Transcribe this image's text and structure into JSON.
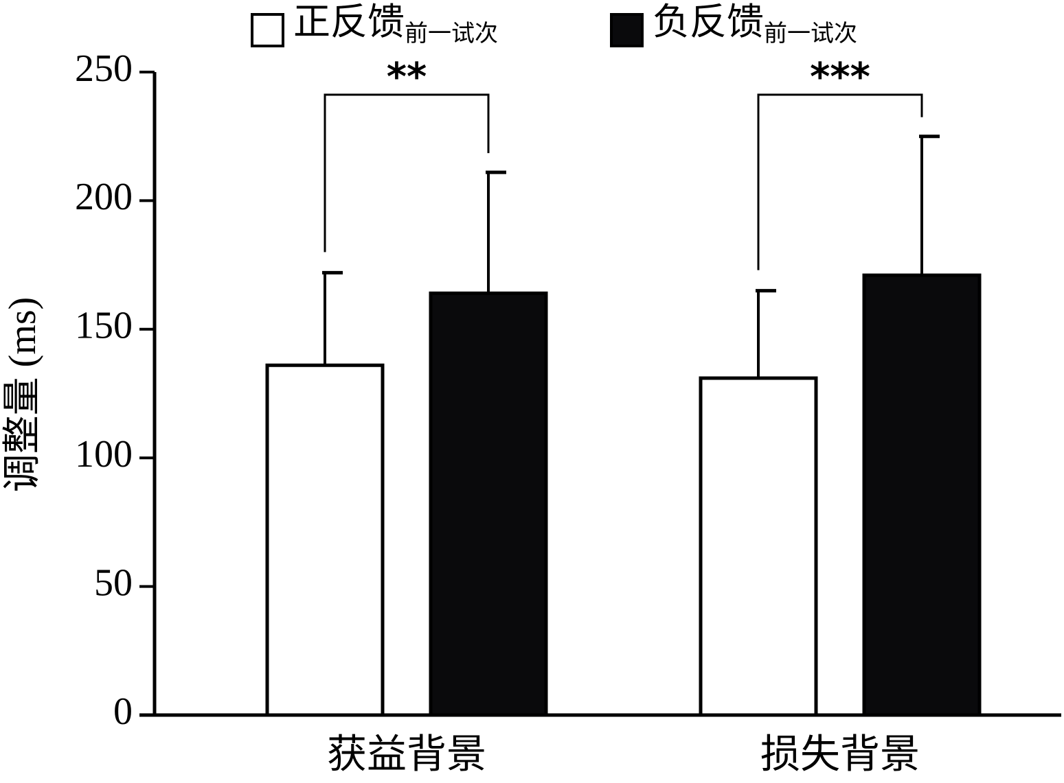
{
  "chart_data": {
    "type": "bar",
    "y_label": "调整量 (ms)",
    "categories": [
      "获益背景",
      "损失背景"
    ],
    "series": [
      {
        "name": "正反馈",
        "subscript": "前一试次",
        "color": "#ffffff",
        "values": [
          136,
          131
        ],
        "errors": [
          36,
          34
        ]
      },
      {
        "name": "负反馈",
        "subscript": "前一试次",
        "color": "#0a0a0c",
        "values": [
          164,
          171
        ],
        "errors": [
          47,
          54
        ]
      }
    ],
    "annotations": [
      {
        "text": "**",
        "category": 0
      },
      {
        "text": "***",
        "category": 1
      }
    ],
    "ylim": [
      0,
      250
    ],
    "yticks": [
      0,
      50,
      100,
      150,
      200,
      250
    ]
  }
}
